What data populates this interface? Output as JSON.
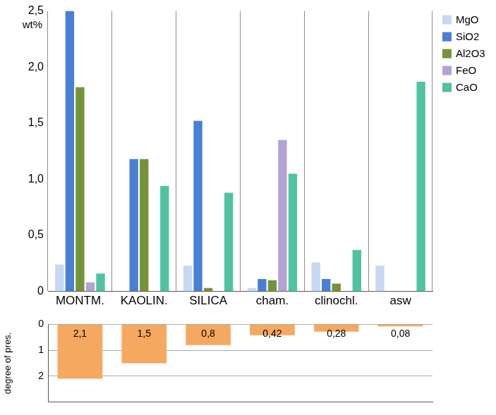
{
  "chart_data": [
    {
      "type": "bar",
      "y_label": "wt%",
      "categories": [
        "MONTM.",
        "KAOLIN.",
        "SILICA",
        "cham.",
        "clinochl.",
        "asw"
      ],
      "series": [
        {
          "name": "MgO",
          "color": "#c6d9f0",
          "values": [
            0.24,
            null,
            0.23,
            0.03,
            0.26,
            0.23
          ]
        },
        {
          "name": "SiO2",
          "color": "#4a7fd6",
          "values": [
            2.5,
            1.18,
            1.52,
            0.11,
            0.11,
            null
          ]
        },
        {
          "name": "Al2O3",
          "color": "#76933c",
          "values": [
            1.82,
            1.18,
            0.03,
            0.1,
            0.07,
            null
          ]
        },
        {
          "name": "FeO",
          "color": "#b3a2d3",
          "values": [
            0.08,
            null,
            null,
            1.35,
            null,
            null
          ]
        },
        {
          "name": "CaO",
          "color": "#4fc3a1",
          "values": [
            0.16,
            0.94,
            0.88,
            1.05,
            0.37,
            1.87
          ]
        }
      ],
      "ylim": [
        0,
        2.5
      ],
      "yticks": [
        0,
        {
          "value": 0.5,
          "label": "0,5"
        },
        {
          "value": 1.0,
          "label": "1,0"
        },
        {
          "value": 1.5,
          "label": "1,5"
        },
        {
          "value": 2.0,
          "label": "2,0"
        },
        {
          "value": 2.5,
          "label": "2,5"
        }
      ],
      "grid": "x",
      "legend": "top-right"
    },
    {
      "type": "bar",
      "y_label": "degree of pres.",
      "categories": [
        "MONTM.",
        "KAOLIN.",
        "SILICA",
        "cham.",
        "clinochl.",
        "asw"
      ],
      "values": [
        2.1,
        1.5,
        0.8,
        0.42,
        0.28,
        0.08
      ],
      "value_labels": [
        "2,1",
        "1,5",
        "0,8",
        "0,42",
        "0,28",
        "0,08"
      ],
      "color": "#f5a85f",
      "ylim": [
        3,
        0
      ],
      "yticks": [
        0,
        1,
        2
      ],
      "grid": "y",
      "data_labels": true,
      "tick_labels": "y"
    }
  ]
}
